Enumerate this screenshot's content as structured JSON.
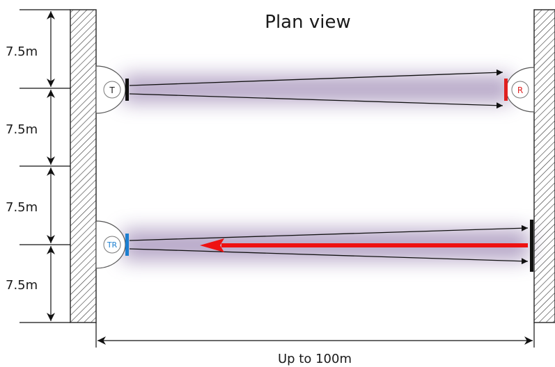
{
  "title": "Plan view",
  "segments": [
    {
      "label": "7.5m"
    },
    {
      "label": "7.5m"
    },
    {
      "label": "7.5m"
    },
    {
      "label": "7.5m"
    }
  ],
  "span": {
    "label": "Up to 100m"
  },
  "devices": {
    "transmitter": {
      "label": "T",
      "color": "#1a1a1a"
    },
    "receiver": {
      "label": "R",
      "color": "#e02020"
    },
    "transceiver": {
      "label": "TR",
      "color": "#1c7fd0"
    }
  },
  "colors": {
    "beam_glow": "#7a5f9a",
    "return_arrow": "#ee1111",
    "wall_hatch": "#333333",
    "reflector": "#111111"
  }
}
